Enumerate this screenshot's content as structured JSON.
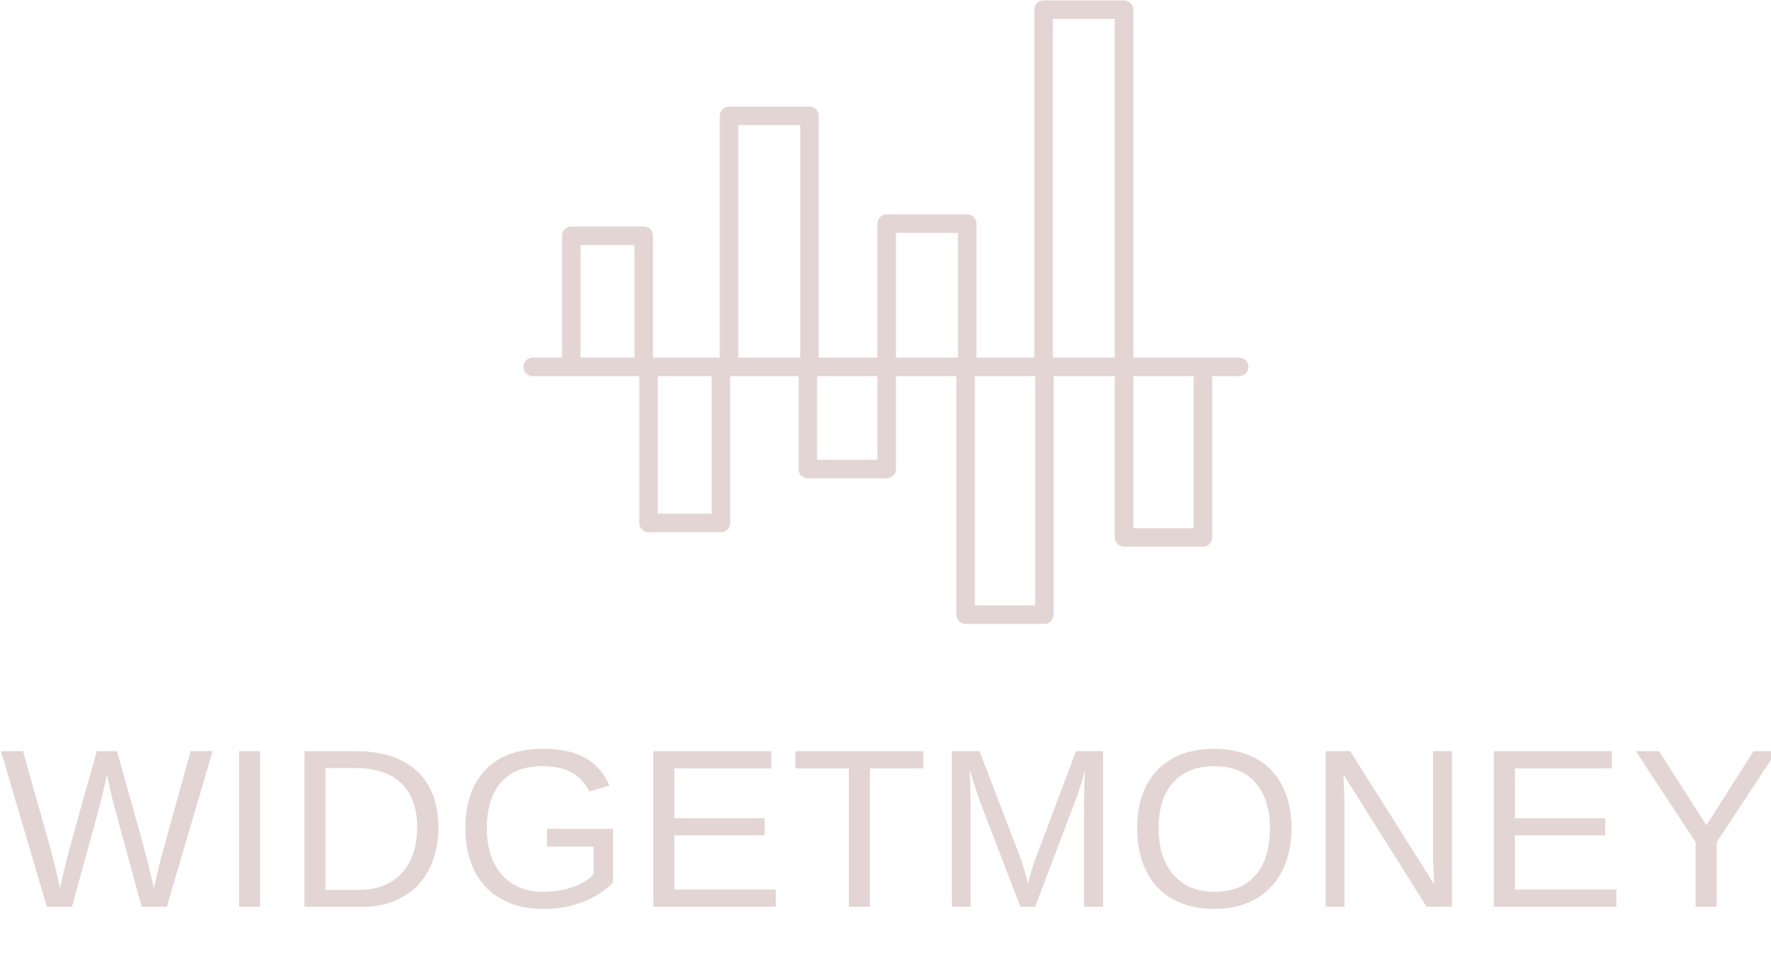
{
  "logo": {
    "wordmark": "WIDGETMONEY",
    "icon": "bar-waveform-logo-icon",
    "color": "#e3d5d3"
  }
}
